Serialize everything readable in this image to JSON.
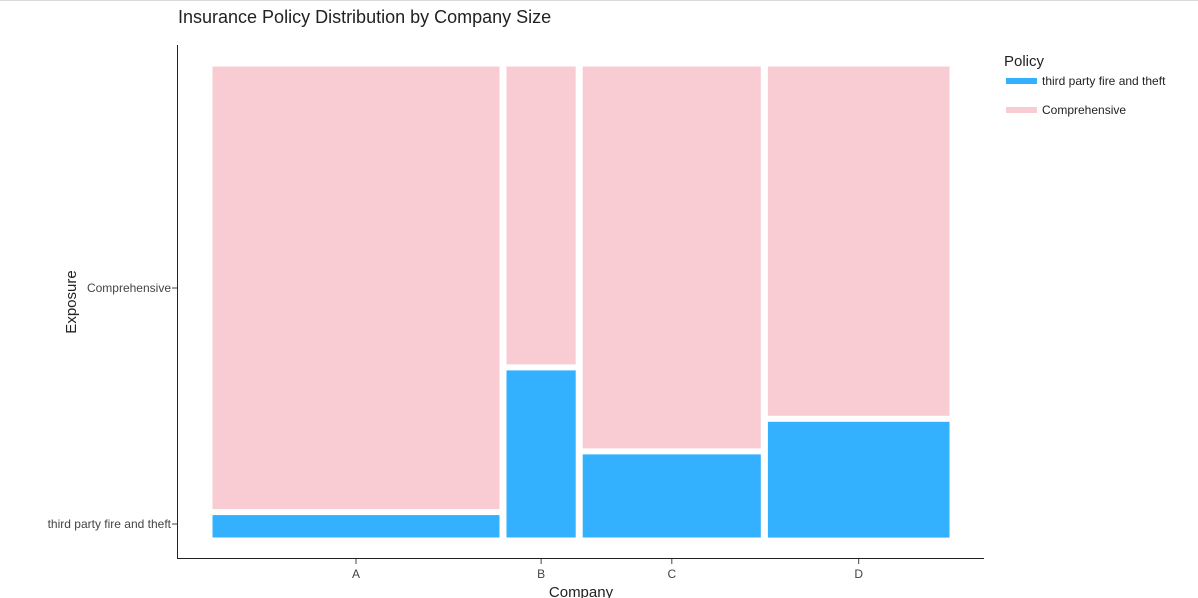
{
  "chart_data": {
    "type": "mosaic",
    "title": "Insurance Policy Distribution by Company Size",
    "xlabel": "Company",
    "ylabel": "Exposure",
    "categories": [
      "A",
      "B",
      "C",
      "D"
    ],
    "column_widths": [
      0.41,
      0.1,
      0.255,
      0.26
    ],
    "y_categories": [
      "third party fire and theft",
      "Comprehensive"
    ],
    "series": [
      {
        "name": "third party fire and theft",
        "color": "#33b1ff",
        "values": [
          0.05,
          0.36,
          0.18,
          0.25
        ]
      },
      {
        "name": "Comprehensive",
        "color": "#f9ccd4",
        "values": [
          0.95,
          0.64,
          0.82,
          0.75
        ]
      }
    ],
    "legend": {
      "title": "Policy",
      "position": "top-right"
    },
    "grid": false
  }
}
